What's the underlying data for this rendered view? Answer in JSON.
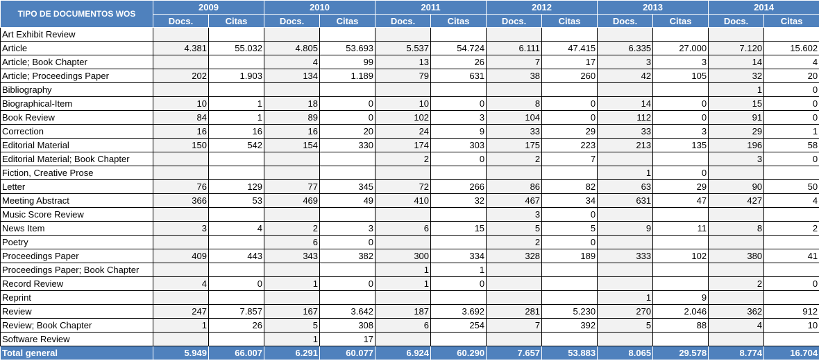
{
  "header": {
    "type_label": "TIPO DE DOCUMENTOS WOS",
    "docs_label": "Docs.",
    "citas_label": "Citas",
    "years": [
      "2009",
      "2010",
      "2011",
      "2012",
      "2013",
      "2014"
    ]
  },
  "rows": [
    {
      "label": "Art Exhibit Review",
      "vals": [
        "",
        "",
        "",
        "",
        "",
        "",
        "",
        "",
        "",
        "",
        "",
        ""
      ]
    },
    {
      "label": "Article",
      "vals": [
        "4.381",
        "55.032",
        "4.805",
        "53.693",
        "5.537",
        "54.724",
        "6.111",
        "47.415",
        "6.335",
        "27.000",
        "7.120",
        "15.602"
      ]
    },
    {
      "label": "Article; Book Chapter",
      "vals": [
        "",
        "",
        "4",
        "99",
        "13",
        "26",
        "7",
        "17",
        "3",
        "3",
        "14",
        "4"
      ]
    },
    {
      "label": "Article; Proceedings Paper",
      "vals": [
        "202",
        "1.903",
        "134",
        "1.189",
        "79",
        "631",
        "38",
        "260",
        "42",
        "105",
        "32",
        "20"
      ]
    },
    {
      "label": "Bibliography",
      "vals": [
        "",
        "",
        "",
        "",
        "",
        "",
        "",
        "",
        "",
        "",
        "1",
        "0"
      ]
    },
    {
      "label": "Biographical-Item",
      "vals": [
        "10",
        "1",
        "18",
        "0",
        "10",
        "0",
        "8",
        "0",
        "14",
        "0",
        "15",
        "0"
      ]
    },
    {
      "label": "Book Review",
      "vals": [
        "84",
        "1",
        "89",
        "0",
        "102",
        "3",
        "104",
        "0",
        "112",
        "0",
        "91",
        "0"
      ]
    },
    {
      "label": "Correction",
      "vals": [
        "16",
        "16",
        "16",
        "20",
        "24",
        "9",
        "33",
        "29",
        "33",
        "3",
        "29",
        "1"
      ]
    },
    {
      "label": "Editorial Material",
      "vals": [
        "150",
        "542",
        "154",
        "330",
        "174",
        "303",
        "175",
        "223",
        "213",
        "135",
        "196",
        "58"
      ]
    },
    {
      "label": "Editorial Material; Book Chapter",
      "vals": [
        "",
        "",
        "",
        "",
        "2",
        "0",
        "2",
        "7",
        "",
        "",
        "3",
        "0"
      ]
    },
    {
      "label": "Fiction, Creative Prose",
      "vals": [
        "",
        "",
        "",
        "",
        "",
        "",
        "",
        "",
        "1",
        "0",
        "",
        ""
      ]
    },
    {
      "label": "Letter",
      "vals": [
        "76",
        "129",
        "77",
        "345",
        "72",
        "266",
        "86",
        "82",
        "63",
        "29",
        "90",
        "50"
      ]
    },
    {
      "label": "Meeting Abstract",
      "vals": [
        "366",
        "53",
        "469",
        "49",
        "410",
        "32",
        "467",
        "34",
        "631",
        "47",
        "427",
        "4"
      ]
    },
    {
      "label": "Music Score Review",
      "vals": [
        "",
        "",
        "",
        "",
        "",
        "",
        "3",
        "0",
        "",
        "",
        "",
        ""
      ]
    },
    {
      "label": "News Item",
      "vals": [
        "3",
        "4",
        "2",
        "3",
        "6",
        "15",
        "5",
        "5",
        "9",
        "11",
        "8",
        "2"
      ]
    },
    {
      "label": "Poetry",
      "vals": [
        "",
        "",
        "6",
        "0",
        "",
        "",
        "2",
        "0",
        "",
        "",
        "",
        ""
      ]
    },
    {
      "label": "Proceedings Paper",
      "vals": [
        "409",
        "443",
        "343",
        "382",
        "300",
        "334",
        "328",
        "189",
        "333",
        "102",
        "380",
        "41"
      ]
    },
    {
      "label": "Proceedings Paper; Book Chapter",
      "vals": [
        "",
        "",
        "",
        "",
        "1",
        "1",
        "",
        "",
        "",
        "",
        "",
        ""
      ]
    },
    {
      "label": "Record Review",
      "vals": [
        "4",
        "0",
        "1",
        "0",
        "1",
        "0",
        "",
        "",
        "",
        "",
        "2",
        "0"
      ]
    },
    {
      "label": "Reprint",
      "vals": [
        "",
        "",
        "",
        "",
        "",
        "",
        "",
        "",
        "1",
        "9",
        "",
        ""
      ]
    },
    {
      "label": "Review",
      "vals": [
        "247",
        "7.857",
        "167",
        "3.642",
        "187",
        "3.692",
        "281",
        "5.230",
        "270",
        "2.046",
        "362",
        "912"
      ]
    },
    {
      "label": "Review; Book Chapter",
      "vals": [
        "1",
        "26",
        "5",
        "308",
        "6",
        "254",
        "7",
        "392",
        "5",
        "88",
        "4",
        "10"
      ]
    },
    {
      "label": "Software Review",
      "vals": [
        "",
        "",
        "1",
        "17",
        "",
        "",
        "",
        "",
        "",
        "",
        "",
        ""
      ]
    }
  ],
  "total": {
    "label": "Total general",
    "vals": [
      "5.949",
      "66.007",
      "6.291",
      "60.077",
      "6.924",
      "60.290",
      "7.657",
      "53.883",
      "8.065",
      "29.578",
      "8.774",
      "16.704"
    ]
  }
}
